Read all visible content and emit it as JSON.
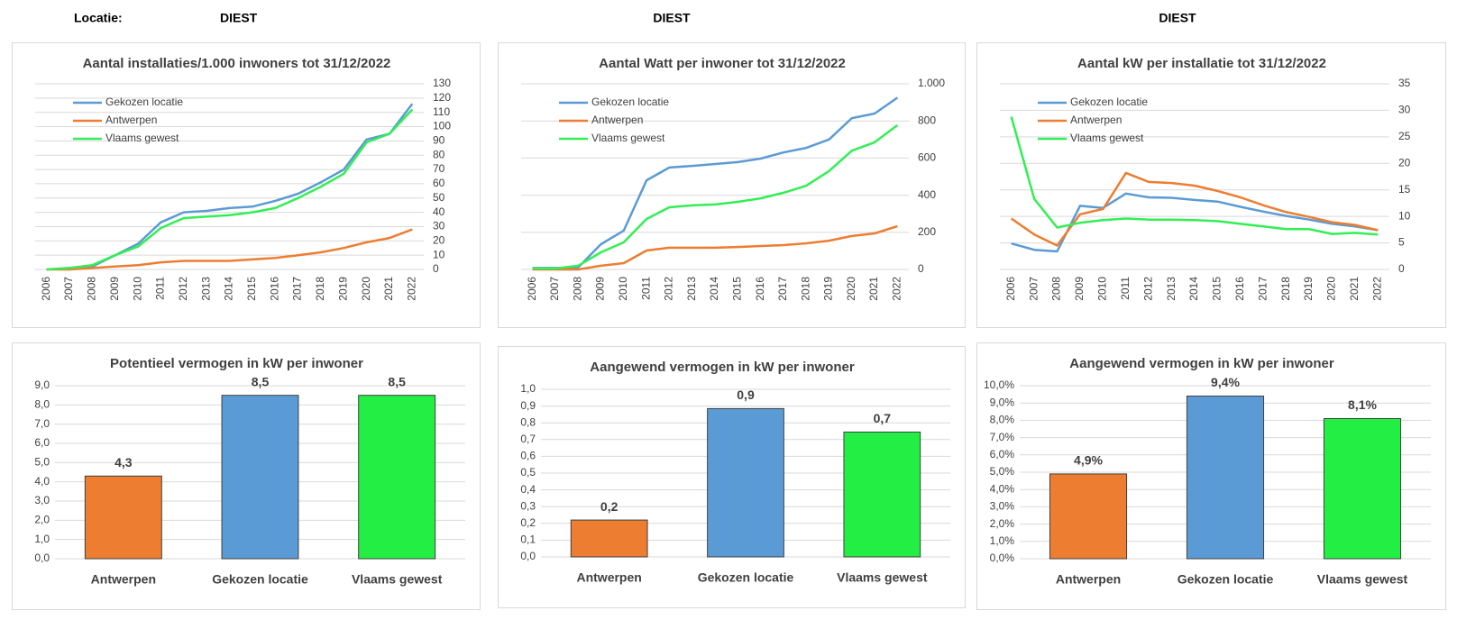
{
  "header": {
    "label": "Locatie:",
    "locations": [
      "DIEST",
      "DIEST",
      "DIEST"
    ]
  },
  "chart_data": [
    {
      "type": "line",
      "title": "Aantal installaties/1.000  inwoners tot 31/12/2022",
      "categories": [
        "2006",
        "2007",
        "2008",
        "2009",
        "2010",
        "2011",
        "2012",
        "2013",
        "2014",
        "2015",
        "2016",
        "2017",
        "2018",
        "2019",
        "2020",
        "2021",
        "2022"
      ],
      "series": [
        {
          "name": "Gekozen locatie",
          "color": "#5b9bd5",
          "values": [
            0,
            1,
            2,
            10,
            18,
            33,
            40,
            41,
            43,
            44,
            48,
            53,
            61,
            70,
            91,
            95,
            116
          ]
        },
        {
          "name": "Antwerpen",
          "color": "#ed7d31",
          "values": [
            0,
            0,
            1,
            2,
            3,
            5,
            6,
            6,
            6,
            7,
            8,
            10,
            12,
            15,
            19,
            22,
            28
          ]
        },
        {
          "name": "Vlaams gewest",
          "color": "#33ee55",
          "values": [
            0,
            1,
            3,
            10,
            16,
            29,
            36,
            37,
            38,
            40,
            43,
            50,
            58,
            67,
            89,
            95,
            112
          ]
        }
      ],
      "ylim": [
        0,
        130
      ],
      "yticks": [
        0,
        10,
        20,
        30,
        40,
        50,
        60,
        70,
        80,
        90,
        100,
        110,
        120,
        130
      ],
      "grid": true
    },
    {
      "type": "line",
      "title": "Aantal Watt per inwoner tot 31/12/2022",
      "categories": [
        "2006",
        "2007",
        "2008",
        "2009",
        "2010",
        "2011",
        "2012",
        "2013",
        "2014",
        "2015",
        "2016",
        "2017",
        "2018",
        "2019",
        "2020",
        "2021",
        "2022"
      ],
      "series": [
        {
          "name": "Gekozen locatie",
          "color": "#5b9bd5",
          "values": [
            8,
            8,
            10,
            136,
            209,
            480,
            549,
            558,
            568,
            578,
            597,
            630,
            655,
            700,
            815,
            840,
            925
          ]
        },
        {
          "name": "Antwerpen",
          "color": "#ed7d31",
          "values": [
            0,
            0,
            0,
            20,
            34,
            102,
            117,
            117,
            117,
            121,
            126,
            131,
            141,
            155,
            180,
            194,
            233
          ]
        },
        {
          "name": "Vlaams gewest",
          "color": "#33ee55",
          "values": [
            5,
            5,
            20,
            92,
            146,
            272,
            335,
            345,
            350,
            364,
            383,
            413,
            451,
            530,
            640,
            685,
            777
          ]
        }
      ],
      "ylim": [
        0,
        1000
      ],
      "yticks": [
        0,
        200,
        400,
        600,
        800,
        {
          "value": 1000,
          "label": "1.000"
        }
      ],
      "grid": true
    },
    {
      "type": "line",
      "title": "Aantal kW per installatie  tot 31/12/2022",
      "categories": [
        "2006",
        "2007",
        "2008",
        "2009",
        "2010",
        "2011",
        "2012",
        "2013",
        "2014",
        "2015",
        "2016",
        "2017",
        "2018",
        "2019",
        "2020",
        "2021",
        "2022"
      ],
      "series": [
        {
          "name": "Gekozen locatie",
          "color": "#5b9bd5",
          "values": [
            4.9,
            3.7,
            3.4,
            12,
            11.6,
            14.3,
            13.6,
            13.5,
            13.1,
            12.8,
            11.8,
            10.9,
            10.1,
            9.4,
            8.6,
            8.1,
            7.4
          ]
        },
        {
          "name": "Antwerpen",
          "color": "#ed7d31",
          "values": [
            9.6,
            6.6,
            4.5,
            10.4,
            11.4,
            18.2,
            16.5,
            16.3,
            15.8,
            14.8,
            13.6,
            12.1,
            10.8,
            9.9,
            8.9,
            8.4,
            7.4
          ]
        },
        {
          "name": "Vlaams gewest",
          "color": "#33ee55",
          "values": [
            28.8,
            13.3,
            7.9,
            8.8,
            9.3,
            9.6,
            9.4,
            9.4,
            9.3,
            9.1,
            8.6,
            8.1,
            7.6,
            7.6,
            6.7,
            6.9,
            6.6
          ]
        }
      ],
      "ylim": [
        0,
        35
      ],
      "yticks": [
        0,
        5,
        10,
        15,
        20,
        25,
        30,
        35
      ],
      "grid": true
    },
    {
      "type": "bar",
      "title": "Potentieel vermogen in kW per inwoner",
      "categories": [
        "Antwerpen",
        "Gekozen locatie",
        "Vlaams gewest"
      ],
      "values": [
        4.3,
        8.5,
        8.5
      ],
      "value_labels": [
        "4,3",
        "8,5",
        "8,5"
      ],
      "colors": [
        "#ed7d31",
        "#5b9bd5",
        "#22ee44"
      ],
      "ylim": [
        0,
        9
      ],
      "yticks": [
        {
          "value": 0,
          "label": "0,0"
        },
        {
          "value": 1,
          "label": "1,0"
        },
        {
          "value": 2,
          "label": "2,0"
        },
        {
          "value": 3,
          "label": "3,0"
        },
        {
          "value": 4,
          "label": "4,0"
        },
        {
          "value": 5,
          "label": "5,0"
        },
        {
          "value": 6,
          "label": "6,0"
        },
        {
          "value": 7,
          "label": "7,0"
        },
        {
          "value": 8,
          "label": "8,0"
        },
        {
          "value": 9,
          "label": "9,0"
        }
      ],
      "grid": true
    },
    {
      "type": "bar",
      "title": "Aangewend vermogen in kW per inwoner",
      "categories": [
        "Antwerpen",
        "Gekozen locatie",
        "Vlaams gewest"
      ],
      "values": [
        0.22,
        0.885,
        0.745
      ],
      "value_labels": [
        "0,2",
        "0,9",
        "0,7"
      ],
      "colors": [
        "#ed7d31",
        "#5b9bd5",
        "#22ee44"
      ],
      "ylim": [
        0,
        1
      ],
      "yticks": [
        {
          "value": 0,
          "label": "0,0"
        },
        {
          "value": 0.1,
          "label": "0,1"
        },
        {
          "value": 0.2,
          "label": "0,2"
        },
        {
          "value": 0.3,
          "label": "0,3"
        },
        {
          "value": 0.4,
          "label": "0,4"
        },
        {
          "value": 0.5,
          "label": "0,5"
        },
        {
          "value": 0.6,
          "label": "0,6"
        },
        {
          "value": 0.7,
          "label": "0,7"
        },
        {
          "value": 0.8,
          "label": "0,8"
        },
        {
          "value": 0.9,
          "label": "0,9"
        },
        {
          "value": 1,
          "label": "1,0"
        }
      ],
      "grid": true
    },
    {
      "type": "bar",
      "title": "Aangewend vermogen in kW per inwoner",
      "categories": [
        "Antwerpen",
        "Gekozen locatie",
        "Vlaams gewest"
      ],
      "values": [
        4.9,
        9.4,
        8.1
      ],
      "value_labels": [
        "4,9%",
        "9,4%",
        "8,1%"
      ],
      "colors": [
        "#ed7d31",
        "#5b9bd5",
        "#22ee44"
      ],
      "ylim": [
        0,
        10
      ],
      "yticks": [
        {
          "value": 0,
          "label": "0,0%"
        },
        {
          "value": 1,
          "label": "1,0%"
        },
        {
          "value": 2,
          "label": "2,0%"
        },
        {
          "value": 3,
          "label": "3,0%"
        },
        {
          "value": 4,
          "label": "4,0%"
        },
        {
          "value": 5,
          "label": "5,0%"
        },
        {
          "value": 6,
          "label": "6,0%"
        },
        {
          "value": 7,
          "label": "7,0%"
        },
        {
          "value": 8,
          "label": "8,0%"
        },
        {
          "value": 9,
          "label": "9,0%"
        },
        {
          "value": 10,
          "label": "10,0%"
        }
      ],
      "grid": true
    }
  ]
}
